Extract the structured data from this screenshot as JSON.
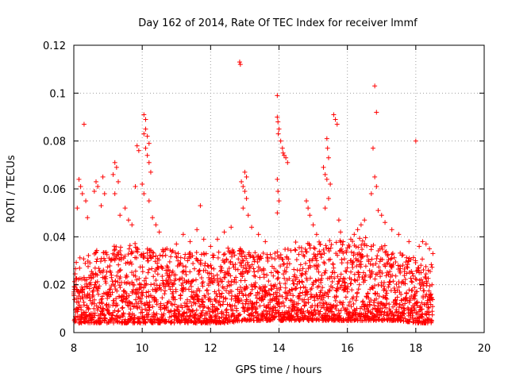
{
  "chart_data": {
    "type": "scatter",
    "title": "Day 162 of 2014, Rate Of TEC Index for receiver lmmf",
    "xlabel": "GPS time / hours",
    "ylabel": "ROTI / TECUs",
    "xlim": [
      8,
      20
    ],
    "ylim": [
      0,
      0.12
    ],
    "xticks": [
      8,
      10,
      12,
      14,
      16,
      18,
      20
    ],
    "xtick_labels": [
      "8",
      "10",
      "12",
      "14",
      "16",
      "18",
      "20"
    ],
    "yticks": [
      0,
      0.02,
      0.04,
      0.06,
      0.08,
      0.1,
      0.12
    ],
    "ytick_labels": [
      "0",
      "0.02",
      "0.04",
      "0.06",
      "0.08",
      "0.1",
      "0.12"
    ],
    "grid": true,
    "marker": "+",
    "color": "#ff0000",
    "series": [
      {
        "name": "ROTI",
        "points": [
          [
            8.3,
            0.087
          ],
          [
            8.15,
            0.064
          ],
          [
            8.2,
            0.061
          ],
          [
            8.25,
            0.058
          ],
          [
            8.1,
            0.052
          ],
          [
            8.35,
            0.055
          ],
          [
            8.4,
            0.048
          ],
          [
            8.6,
            0.059
          ],
          [
            8.65,
            0.063
          ],
          [
            8.7,
            0.061
          ],
          [
            8.85,
            0.065
          ],
          [
            8.9,
            0.058
          ],
          [
            8.8,
            0.053
          ],
          [
            9.2,
            0.071
          ],
          [
            9.25,
            0.069
          ],
          [
            9.15,
            0.066
          ],
          [
            9.3,
            0.063
          ],
          [
            9.2,
            0.058
          ],
          [
            9.35,
            0.049
          ],
          [
            9.5,
            0.052
          ],
          [
            9.6,
            0.047
          ],
          [
            9.7,
            0.045
          ],
          [
            9.8,
            0.061
          ],
          [
            9.85,
            0.078
          ],
          [
            9.9,
            0.076
          ],
          [
            10.05,
            0.091
          ],
          [
            10.1,
            0.089
          ],
          [
            10.1,
            0.085
          ],
          [
            10.05,
            0.083
          ],
          [
            10.15,
            0.082
          ],
          [
            10.2,
            0.079
          ],
          [
            10.1,
            0.077
          ],
          [
            10.15,
            0.074
          ],
          [
            10.2,
            0.071
          ],
          [
            10.25,
            0.067
          ],
          [
            10.0,
            0.062
          ],
          [
            10.05,
            0.058
          ],
          [
            10.2,
            0.055
          ],
          [
            10.3,
            0.048
          ],
          [
            10.4,
            0.045
          ],
          [
            10.5,
            0.042
          ],
          [
            11.0,
            0.037
          ],
          [
            11.2,
            0.041
          ],
          [
            11.4,
            0.038
          ],
          [
            11.6,
            0.043
          ],
          [
            11.7,
            0.053
          ],
          [
            11.8,
            0.039
          ],
          [
            12.0,
            0.036
          ],
          [
            12.2,
            0.039
          ],
          [
            12.4,
            0.042
          ],
          [
            12.6,
            0.044
          ],
          [
            12.85,
            0.113
          ],
          [
            12.87,
            0.112
          ],
          [
            12.9,
            0.063
          ],
          [
            12.95,
            0.061
          ],
          [
            13.0,
            0.067
          ],
          [
            13.05,
            0.065
          ],
          [
            13.0,
            0.059
          ],
          [
            13.05,
            0.056
          ],
          [
            12.95,
            0.052
          ],
          [
            13.1,
            0.049
          ],
          [
            13.2,
            0.044
          ],
          [
            13.4,
            0.041
          ],
          [
            13.6,
            0.038
          ],
          [
            13.95,
            0.099
          ],
          [
            13.95,
            0.09
          ],
          [
            13.97,
            0.088
          ],
          [
            14.0,
            0.085
          ],
          [
            13.98,
            0.083
          ],
          [
            14.05,
            0.08
          ],
          [
            14.1,
            0.077
          ],
          [
            14.12,
            0.075
          ],
          [
            14.2,
            0.073
          ],
          [
            14.15,
            0.074
          ],
          [
            14.25,
            0.071
          ],
          [
            13.95,
            0.064
          ],
          [
            13.97,
            0.059
          ],
          [
            14.0,
            0.055
          ],
          [
            13.95,
            0.05
          ],
          [
            14.8,
            0.055
          ],
          [
            14.85,
            0.052
          ],
          [
            14.9,
            0.049
          ],
          [
            15.0,
            0.045
          ],
          [
            15.1,
            0.041
          ],
          [
            15.3,
            0.069
          ],
          [
            15.35,
            0.066
          ],
          [
            15.4,
            0.081
          ],
          [
            15.42,
            0.077
          ],
          [
            15.45,
            0.073
          ],
          [
            15.4,
            0.064
          ],
          [
            15.5,
            0.062
          ],
          [
            15.45,
            0.056
          ],
          [
            15.35,
            0.052
          ],
          [
            15.6,
            0.091
          ],
          [
            15.65,
            0.089
          ],
          [
            15.7,
            0.087
          ],
          [
            15.75,
            0.047
          ],
          [
            15.8,
            0.042
          ],
          [
            16.1,
            0.039
          ],
          [
            16.2,
            0.041
          ],
          [
            16.3,
            0.043
          ],
          [
            16.4,
            0.045
          ],
          [
            16.5,
            0.047
          ],
          [
            16.8,
            0.103
          ],
          [
            16.85,
            0.092
          ],
          [
            16.75,
            0.077
          ],
          [
            16.8,
            0.065
          ],
          [
            16.85,
            0.061
          ],
          [
            16.7,
            0.058
          ],
          [
            16.9,
            0.051
          ],
          [
            17.0,
            0.049
          ],
          [
            17.1,
            0.046
          ],
          [
            17.3,
            0.043
          ],
          [
            17.5,
            0.041
          ],
          [
            17.8,
            0.038
          ],
          [
            18.0,
            0.08
          ],
          [
            18.1,
            0.036
          ],
          [
            18.2,
            0.038
          ],
          [
            18.3,
            0.037
          ],
          [
            18.4,
            0.035
          ],
          [
            18.5,
            0.033
          ]
        ],
        "band": [
          [
            8.0,
            0.004,
            0.03
          ],
          [
            8.5,
            0.004,
            0.034
          ],
          [
            9.0,
            0.004,
            0.036
          ],
          [
            9.5,
            0.004,
            0.038
          ],
          [
            10.0,
            0.004,
            0.037
          ],
          [
            10.5,
            0.004,
            0.036
          ],
          [
            11.0,
            0.004,
            0.034
          ],
          [
            11.5,
            0.004,
            0.035
          ],
          [
            12.0,
            0.004,
            0.033
          ],
          [
            12.5,
            0.004,
            0.036
          ],
          [
            13.0,
            0.005,
            0.035
          ],
          [
            13.5,
            0.005,
            0.033
          ],
          [
            14.0,
            0.005,
            0.035
          ],
          [
            14.5,
            0.005,
            0.038
          ],
          [
            15.0,
            0.005,
            0.037
          ],
          [
            15.5,
            0.005,
            0.04
          ],
          [
            16.0,
            0.005,
            0.038
          ],
          [
            16.5,
            0.005,
            0.04
          ],
          [
            17.0,
            0.005,
            0.037
          ],
          [
            17.5,
            0.005,
            0.034
          ],
          [
            18.0,
            0.004,
            0.032
          ],
          [
            18.5,
            0.004,
            0.03
          ]
        ]
      }
    ]
  }
}
